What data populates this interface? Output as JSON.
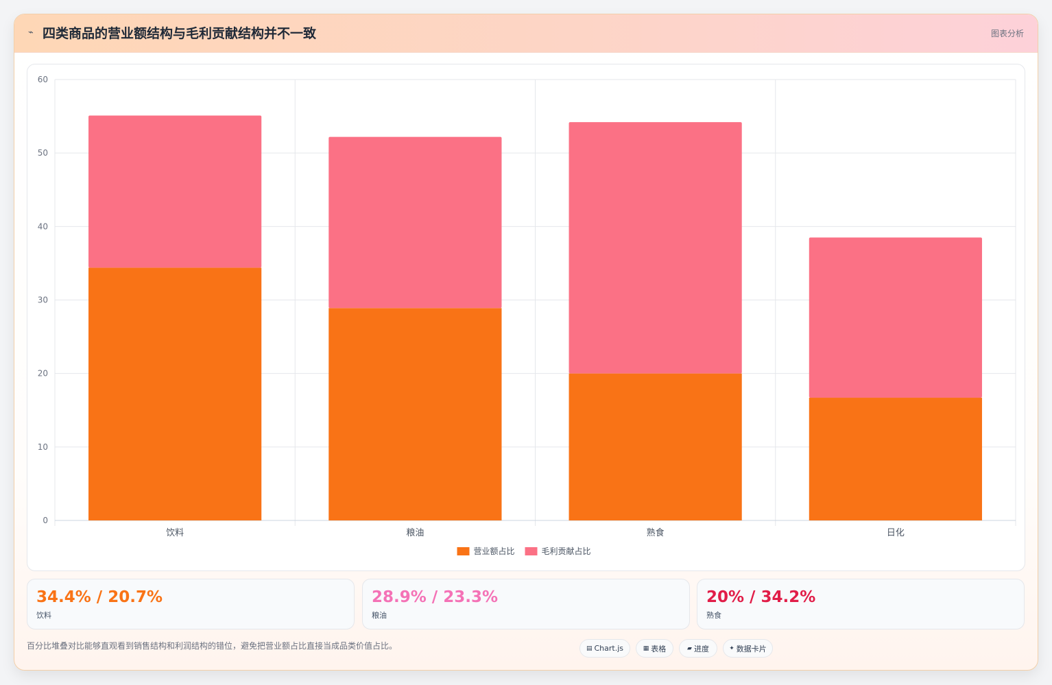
{
  "header": {
    "icon": "chart-icon",
    "title": "四类商品的营业额结构与毛利贡献结构并不一致",
    "tag": "图表分析"
  },
  "chart_data": {
    "type": "bar",
    "stacked": true,
    "categories": [
      "饮料",
      "粮油",
      "熟食",
      "日化"
    ],
    "series": [
      {
        "name": "营业额占比",
        "values": [
          34.4,
          28.9,
          20,
          16.7
        ],
        "color": "#f97316"
      },
      {
        "name": "毛利贡献占比",
        "values": [
          20.7,
          23.3,
          34.2,
          21.8
        ],
        "color": "#fb7185"
      }
    ],
    "ylim": [
      0,
      60
    ],
    "yticks": [
      0,
      10,
      20,
      30,
      40,
      50,
      60
    ],
    "grid": true,
    "legend": "bottom",
    "title": "",
    "xlabel": "",
    "ylabel": ""
  },
  "stats": [
    {
      "value": "34.4% / 20.7%",
      "label": "饮料",
      "color": "#f97316"
    },
    {
      "value": "28.9% / 23.3%",
      "label": "粮油",
      "color": "#f472b6"
    },
    {
      "value": "20% / 34.2%",
      "label": "熟食",
      "color": "#e11d48"
    }
  ],
  "footnote": "百分比堆叠对比能够直观看到销售结构和利润结构的错位，避免把营业额占比直接当成品类价值占比。",
  "chips": [
    {
      "icon": "chart-icon",
      "label": "Chart.js"
    },
    {
      "icon": "table-icon",
      "label": "表格"
    },
    {
      "icon": "progress-icon",
      "label": "进度"
    },
    {
      "icon": "data-card-icon",
      "label": "数据卡片"
    }
  ]
}
